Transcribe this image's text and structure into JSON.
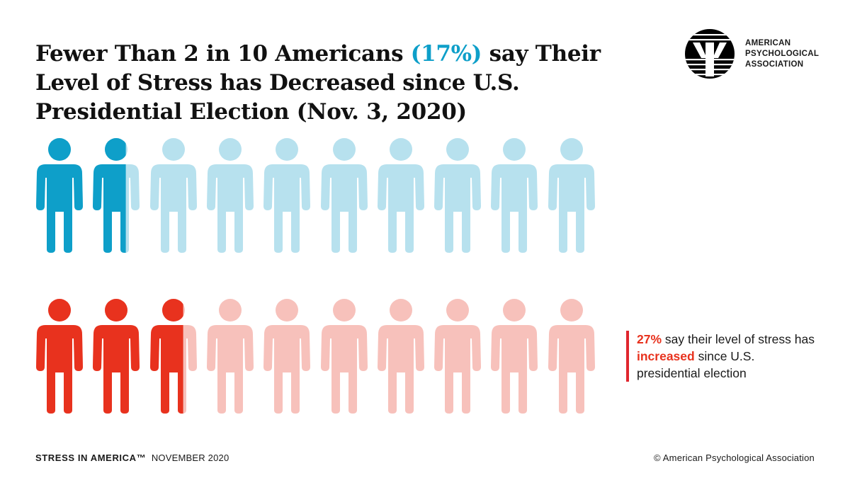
{
  "header": {
    "title_part1": "Fewer Than 2 in 10 Americans ",
    "title_highlight": "(17%)",
    "title_part2": " say Their Level of Stress has Decreased since U.S. Presidential Election (Nov. 3, 2020)"
  },
  "logo": {
    "line1": "AMERICAN",
    "line2": "PSYCHOLOGICAL",
    "line3": "ASSOCIATION"
  },
  "callout": {
    "percent": "27%",
    "text1": " say their level of stress has ",
    "emphasis": "increased",
    "text2": " since U.S. presidential election"
  },
  "footer": {
    "brand": "STRESS IN AMERICA™",
    "date": "NOVEMBER 2020",
    "copyright": "© American Psychological Association"
  },
  "chart_data": {
    "type": "pictogram",
    "figures_per_row": 10,
    "units_per_figure_percent": 10,
    "series": [
      {
        "name": "decreased",
        "value": 17,
        "color": "#0e9fc9",
        "light_color": "#b7e1ee"
      },
      {
        "name": "increased",
        "value": 27,
        "color": "#e8321e",
        "light_color": "#f7c1bb"
      }
    ]
  }
}
